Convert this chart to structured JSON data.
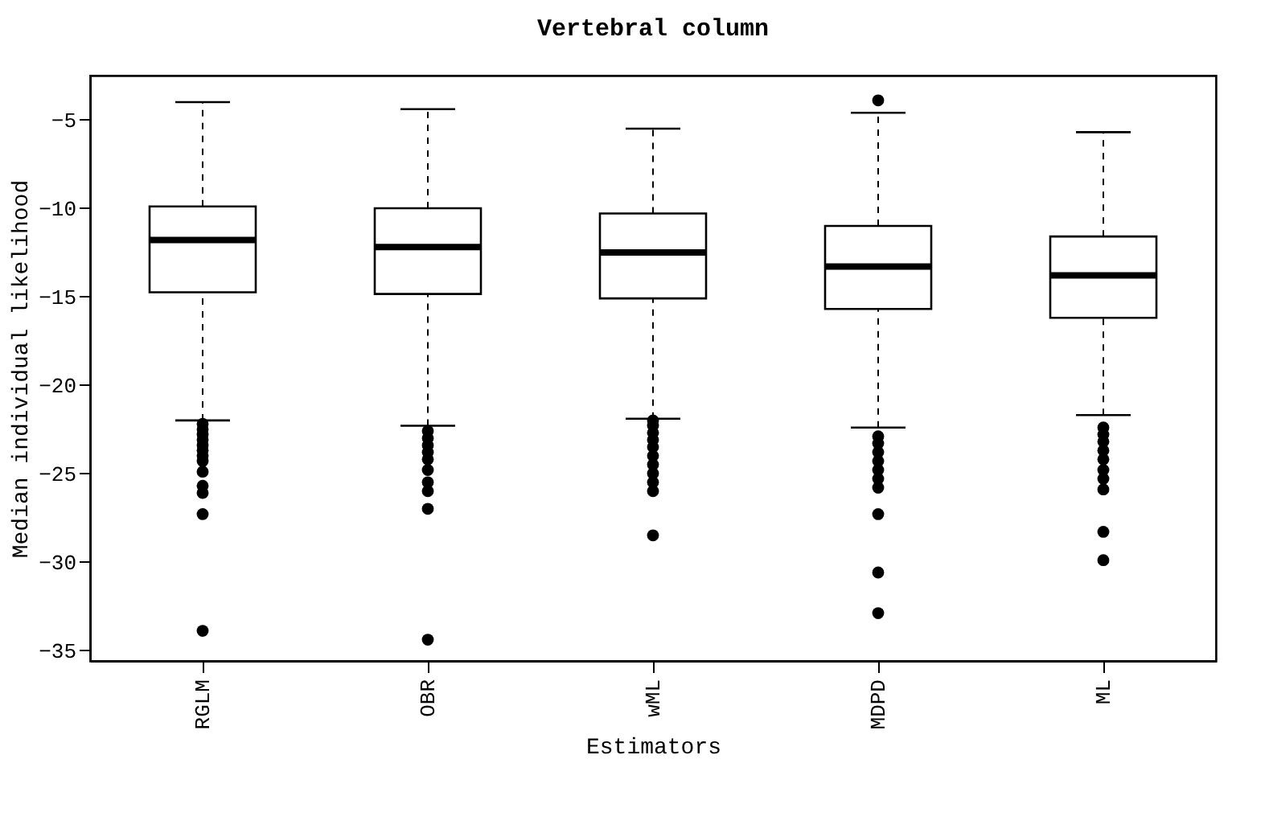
{
  "chart_data": {
    "type": "box",
    "title": "Vertebral column",
    "xlabel": "Estimators",
    "ylabel": "Median individual likelihood",
    "categories": [
      "RGLM",
      "OBR",
      "wML",
      "MDPD",
      "ML"
    ],
    "boxes": [
      {
        "low": -22.0,
        "q1": -14.75,
        "median": -11.8,
        "q3": -9.9,
        "high": -4.0,
        "outliers": [
          -22.2,
          -22.5,
          -22.8,
          -23.1,
          -23.4,
          -23.7,
          -24.0,
          -24.3,
          -24.9,
          -25.7,
          -26.1,
          -27.3,
          -33.9
        ]
      },
      {
        "low": -22.3,
        "q1": -14.85,
        "median": -12.2,
        "q3": -10.0,
        "high": -4.4,
        "outliers": [
          -22.6,
          -23.0,
          -23.4,
          -23.8,
          -24.2,
          -24.8,
          -25.5,
          -26.0,
          -27.0,
          -34.4
        ]
      },
      {
        "low": -21.9,
        "q1": -15.1,
        "median": -12.5,
        "q3": -10.3,
        "high": -5.5,
        "outliers": [
          -22.0,
          -22.3,
          -22.7,
          -23.1,
          -23.5,
          -24.0,
          -24.5,
          -25.0,
          -25.5,
          -26.0,
          -28.5
        ]
      },
      {
        "low": -22.4,
        "q1": -15.7,
        "median": -13.3,
        "q3": -11.0,
        "high": -4.6,
        "outliers": [
          -3.9,
          -22.9,
          -23.3,
          -23.8,
          -24.3,
          -24.8,
          -25.3,
          -25.8,
          -27.3,
          -30.6,
          -32.9
        ]
      },
      {
        "low": -21.7,
        "q1": -16.2,
        "median": -13.8,
        "q3": -11.6,
        "high": -5.7,
        "outliers": [
          -22.4,
          -22.8,
          -23.2,
          -23.7,
          -24.2,
          -24.8,
          -25.3,
          -25.9,
          -28.3,
          -29.9
        ]
      }
    ],
    "ylim": [
      -35.6,
      -2.5
    ],
    "yticks": [
      -35,
      -30,
      -25,
      -20,
      -15,
      -10,
      -5
    ]
  }
}
